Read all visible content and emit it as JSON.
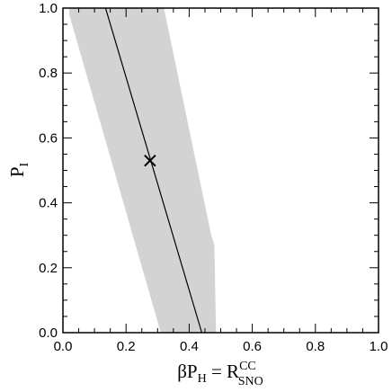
{
  "chart_data": {
    "type": "line",
    "xlim": [
      0.0,
      1.0
    ],
    "ylim": [
      0.0,
      1.0
    ],
    "grid": false,
    "xticks": [
      "0.0",
      "0.2",
      "0.4",
      "0.6",
      "0.8",
      "1.0"
    ],
    "yticks": [
      "0.0",
      "0.2",
      "0.4",
      "0.6",
      "0.8",
      "1.0"
    ],
    "xlabel": {
      "main": "βP",
      "sub": "H",
      "eq": " = R",
      "sup": "CC",
      "sub2": "SNO"
    },
    "ylabel": {
      "main": "P",
      "sub": "I"
    },
    "band": {
      "color": "#d3d3d3",
      "polygon": [
        [
          0.02,
          1.0
        ],
        [
          0.32,
          1.0
        ],
        [
          0.47,
          0.3
        ],
        [
          0.48,
          0.27
        ],
        [
          0.485,
          0.0
        ],
        [
          0.31,
          0.0
        ],
        [
          0.02,
          0.98
        ]
      ]
    },
    "line": {
      "color": "#000000",
      "points": [
        [
          0.135,
          1.0
        ],
        [
          0.44,
          0.0
        ]
      ]
    },
    "marker": {
      "symbol": "x",
      "x": 0.276,
      "y": 0.53
    }
  }
}
